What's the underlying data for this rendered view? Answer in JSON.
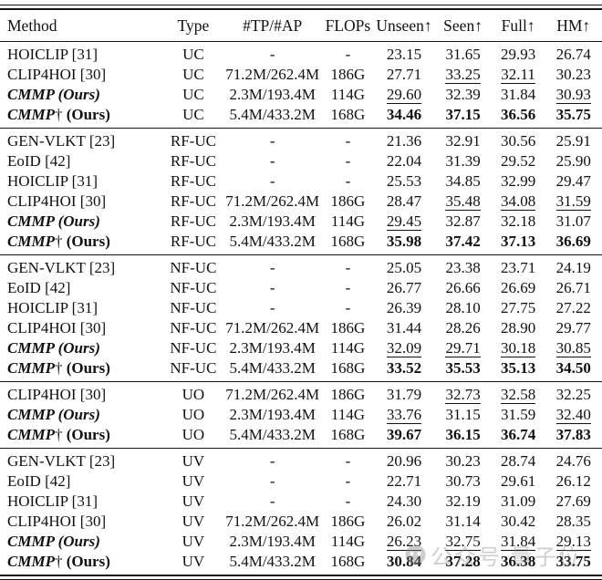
{
  "page": {
    "background": "#ffffff",
    "text_color": "#111111",
    "rule_color": "#151515",
    "watermark_color": "#8f8f8f"
  },
  "table": {
    "columns": [
      {
        "label": "Method",
        "align": "left"
      },
      {
        "label": "Type"
      },
      {
        "label": "#TP/#AP"
      },
      {
        "label": "FLOPs"
      },
      {
        "label": "Unseen↑"
      },
      {
        "label": "Seen↑"
      },
      {
        "label": "Full↑"
      },
      {
        "label": "HM↑"
      }
    ],
    "groups": [
      {
        "type_label": "UC",
        "rows": [
          {
            "method": "HOICLIP [31]",
            "ours": false,
            "type": "UC",
            "params": "-",
            "flops": "-",
            "metrics": [
              {
                "v": "23.15"
              },
              {
                "v": "31.65"
              },
              {
                "v": "29.93"
              },
              {
                "v": "26.74"
              }
            ]
          },
          {
            "method": "CLIP4HOI [30]",
            "ours": false,
            "type": "UC",
            "params": "71.2M/262.4M",
            "flops": "186G",
            "metrics": [
              {
                "v": "27.71"
              },
              {
                "v": "33.25",
                "u": true
              },
              {
                "v": "32.11",
                "u": true
              },
              {
                "v": "30.23"
              }
            ]
          },
          {
            "method": "CMMP (Ours)",
            "ours": true,
            "type": "UC",
            "params": "2.3M/193.4M",
            "flops": "114G",
            "method_segments": [
              {
                "t": "CMMP (Ours)",
                "style": "bi"
              }
            ],
            "metrics": [
              {
                "v": "29.60",
                "u": true
              },
              {
                "v": "32.39"
              },
              {
                "v": "31.84"
              },
              {
                "v": "30.93",
                "u": true
              }
            ]
          },
          {
            "method": "CMMP† (Ours)",
            "ours": true,
            "type": "UC",
            "params": "5.4M/433.2M",
            "flops": "168G",
            "method_segments": [
              {
                "t": "CMMP",
                "style": "bi"
              },
              {
                "t": "†",
                "style": "rm"
              },
              {
                "t": " (Ours)",
                "style": "b"
              }
            ],
            "metrics": [
              {
                "v": "34.46",
                "b": true
              },
              {
                "v": "37.15",
                "b": true
              },
              {
                "v": "36.56",
                "b": true
              },
              {
                "v": "35.75",
                "b": true
              }
            ]
          }
        ]
      },
      {
        "type_label": "RF-UC",
        "rows": [
          {
            "method": "GEN-VLKT [23]",
            "ours": false,
            "type": "RF-UC",
            "params": "-",
            "flops": "-",
            "metrics": [
              {
                "v": "21.36"
              },
              {
                "v": "32.91"
              },
              {
                "v": "30.56"
              },
              {
                "v": "25.91"
              }
            ]
          },
          {
            "method": "EoID [42]",
            "ours": false,
            "type": "RF-UC",
            "params": "-",
            "flops": "-",
            "metrics": [
              {
                "v": "22.04"
              },
              {
                "v": "31.39"
              },
              {
                "v": "29.52"
              },
              {
                "v": "25.90"
              }
            ]
          },
          {
            "method": "HOICLIP [31]",
            "ours": false,
            "type": "RF-UC",
            "params": "-",
            "flops": "-",
            "metrics": [
              {
                "v": "25.53"
              },
              {
                "v": "34.85"
              },
              {
                "v": "32.99"
              },
              {
                "v": "29.47"
              }
            ]
          },
          {
            "method": "CLIP4HOI [30]",
            "ours": false,
            "type": "RF-UC",
            "params": "71.2M/262.4M",
            "flops": "186G",
            "metrics": [
              {
                "v": "28.47"
              },
              {
                "v": "35.48",
                "u": true
              },
              {
                "v": "34.08",
                "u": true
              },
              {
                "v": "31.59",
                "u": true
              }
            ]
          },
          {
            "method": "CMMP (Ours)",
            "ours": true,
            "type": "RF-UC",
            "params": "2.3M/193.4M",
            "flops": "114G",
            "method_segments": [
              {
                "t": "CMMP (Ours)",
                "style": "bi"
              }
            ],
            "metrics": [
              {
                "v": "29.45",
                "u": true
              },
              {
                "v": "32.87"
              },
              {
                "v": "32.18"
              },
              {
                "v": "31.07"
              }
            ]
          },
          {
            "method": "CMMP† (Ours)",
            "ours": true,
            "type": "RF-UC",
            "params": "5.4M/433.2M",
            "flops": "168G",
            "method_segments": [
              {
                "t": "CMMP",
                "style": "bi"
              },
              {
                "t": "†",
                "style": "rm"
              },
              {
                "t": " (Ours)",
                "style": "b"
              }
            ],
            "metrics": [
              {
                "v": "35.98",
                "b": true
              },
              {
                "v": "37.42",
                "b": true
              },
              {
                "v": "37.13",
                "b": true
              },
              {
                "v": "36.69",
                "b": true
              }
            ]
          }
        ]
      },
      {
        "type_label": "NF-UC",
        "rows": [
          {
            "method": "GEN-VLKT [23]",
            "ours": false,
            "type": "NF-UC",
            "params": "-",
            "flops": "-",
            "metrics": [
              {
                "v": "25.05"
              },
              {
                "v": "23.38"
              },
              {
                "v": "23.71"
              },
              {
                "v": "24.19"
              }
            ]
          },
          {
            "method": "EoID [42]",
            "ours": false,
            "type": "NF-UC",
            "params": "-",
            "flops": "-",
            "metrics": [
              {
                "v": "26.77"
              },
              {
                "v": "26.66"
              },
              {
                "v": "26.69"
              },
              {
                "v": "26.71"
              }
            ]
          },
          {
            "method": "HOICLIP [31]",
            "ours": false,
            "type": "NF-UC",
            "params": "-",
            "flops": "-",
            "metrics": [
              {
                "v": "26.39"
              },
              {
                "v": "28.10"
              },
              {
                "v": "27.75"
              },
              {
                "v": "27.22"
              }
            ]
          },
          {
            "method": "CLIP4HOI [30]",
            "ours": false,
            "type": "NF-UC",
            "params": "71.2M/262.4M",
            "flops": "186G",
            "metrics": [
              {
                "v": "31.44"
              },
              {
                "v": "28.26"
              },
              {
                "v": "28.90"
              },
              {
                "v": "29.77"
              }
            ]
          },
          {
            "method": "CMMP (Ours)",
            "ours": true,
            "type": "NF-UC",
            "params": "2.3M/193.4M",
            "flops": "114G",
            "method_segments": [
              {
                "t": "CMMP (Ours)",
                "style": "bi"
              }
            ],
            "metrics": [
              {
                "v": "32.09",
                "u": true
              },
              {
                "v": "29.71",
                "u": true
              },
              {
                "v": "30.18",
                "u": true
              },
              {
                "v": "30.85",
                "u": true
              }
            ]
          },
          {
            "method": "CMMP† (Ours)",
            "ours": true,
            "type": "NF-UC",
            "params": "5.4M/433.2M",
            "flops": "168G",
            "method_segments": [
              {
                "t": "CMMP",
                "style": "bi"
              },
              {
                "t": "†",
                "style": "rm"
              },
              {
                "t": " (Ours)",
                "style": "b"
              }
            ],
            "metrics": [
              {
                "v": "33.52",
                "b": true
              },
              {
                "v": "35.53",
                "b": true
              },
              {
                "v": "35.13",
                "b": true
              },
              {
                "v": "34.50",
                "b": true
              }
            ]
          }
        ]
      },
      {
        "type_label": "UO",
        "rows": [
          {
            "method": "CLIP4HOI [30]",
            "ours": false,
            "type": "UO",
            "params": "71.2M/262.4M",
            "flops": "186G",
            "metrics": [
              {
                "v": "31.79"
              },
              {
                "v": "32.73",
                "u": true
              },
              {
                "v": "32.58",
                "u": true
              },
              {
                "v": "32.25"
              }
            ]
          },
          {
            "method": "CMMP (Ours)",
            "ours": true,
            "type": "UO",
            "params": "2.3M/193.4M",
            "flops": "114G",
            "method_segments": [
              {
                "t": "CMMP (Ours)",
                "style": "bi"
              }
            ],
            "metrics": [
              {
                "v": "33.76",
                "u": true
              },
              {
                "v": "31.15"
              },
              {
                "v": "31.59"
              },
              {
                "v": "32.40",
                "u": true
              }
            ]
          },
          {
            "method": "CMMP† (Ours)",
            "ours": true,
            "type": "UO",
            "params": "5.4M/433.2M",
            "flops": "168G",
            "method_segments": [
              {
                "t": "CMMP",
                "style": "bi"
              },
              {
                "t": "†",
                "style": "rm"
              },
              {
                "t": " (Ours)",
                "style": "b"
              }
            ],
            "metrics": [
              {
                "v": "39.67",
                "b": true
              },
              {
                "v": "36.15",
                "b": true
              },
              {
                "v": "36.74",
                "b": true
              },
              {
                "v": "37.83",
                "b": true
              }
            ]
          }
        ]
      },
      {
        "type_label": "UV",
        "rows": [
          {
            "method": "GEN-VLKT [23]",
            "ours": false,
            "type": "UV",
            "params": "-",
            "flops": "-",
            "metrics": [
              {
                "v": "20.96"
              },
              {
                "v": "30.23"
              },
              {
                "v": "28.74"
              },
              {
                "v": "24.76"
              }
            ]
          },
          {
            "method": "EoID [42]",
            "ours": false,
            "type": "UV",
            "params": "-",
            "flops": "-",
            "metrics": [
              {
                "v": "22.71"
              },
              {
                "v": "30.73"
              },
              {
                "v": "29.61"
              },
              {
                "v": "26.12"
              }
            ]
          },
          {
            "method": "HOICLIP [31]",
            "ours": false,
            "type": "UV",
            "params": "-",
            "flops": "-",
            "metrics": [
              {
                "v": "24.30"
              },
              {
                "v": "32.19"
              },
              {
                "v": "31.09"
              },
              {
                "v": "27.69"
              }
            ]
          },
          {
            "method": "CLIP4HOI [30]",
            "ours": false,
            "type": "UV",
            "params": "71.2M/262.4M",
            "flops": "186G",
            "metrics": [
              {
                "v": "26.02"
              },
              {
                "v": "31.14"
              },
              {
                "v": "30.42"
              },
              {
                "v": "28.35"
              }
            ]
          },
          {
            "method": "CMMP (Ours)",
            "ours": true,
            "type": "UV",
            "params": "2.3M/193.4M",
            "flops": "114G",
            "method_segments": [
              {
                "t": "CMMP (Ours)",
                "style": "bi"
              }
            ],
            "metrics": [
              {
                "v": "26.23",
                "u": true
              },
              {
                "v": "32.75",
                "u": true
              },
              {
                "v": "31.84",
                "u": true
              },
              {
                "v": "29.13",
                "u": true
              }
            ]
          },
          {
            "method": "CMMP† (Ours)",
            "ours": true,
            "type": "UV",
            "params": "5.4M/433.2M",
            "flops": "168G",
            "method_segments": [
              {
                "t": "CMMP",
                "style": "bi"
              },
              {
                "t": "†",
                "style": "rm"
              },
              {
                "t": " (Ours)",
                "style": "b"
              }
            ],
            "metrics": [
              {
                "v": "30.84",
                "b": true
              },
              {
                "v": "37.28",
                "b": true
              },
              {
                "v": "36.38",
                "b": true
              },
              {
                "v": "33.75",
                "b": true
              }
            ]
          }
        ]
      }
    ]
  },
  "watermark": {
    "text": "公众号 量子位"
  }
}
